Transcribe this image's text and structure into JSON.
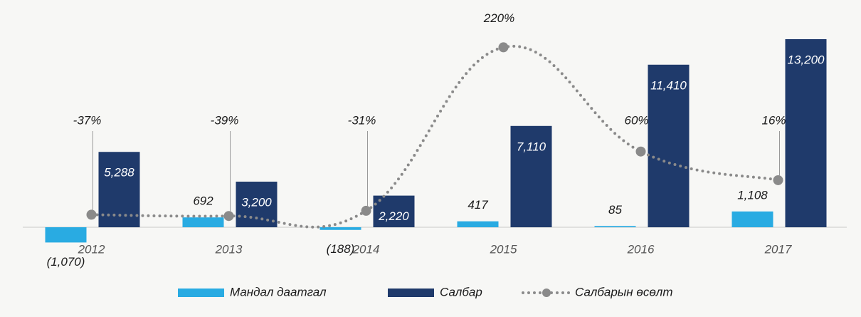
{
  "chart_data": {
    "type": "bar",
    "categories": [
      "2012",
      "2013",
      "2014",
      "2015",
      "2016",
      "2017"
    ],
    "ylim": [
      -2000,
      14000
    ],
    "y2lim": [
      -100,
      250
    ],
    "series": [
      {
        "name": "Мандал даатгал",
        "color": "#29abe2",
        "values": [
          -1070,
          692,
          -188,
          417,
          85,
          1108
        ],
        "value_labels": [
          "(1,070)",
          "692",
          "(188)",
          "417",
          "85",
          "1,108"
        ]
      },
      {
        "name": "Салбар",
        "color": "#1f3a6b",
        "values": [
          5288,
          3200,
          2220,
          7110,
          11410,
          13200
        ],
        "value_labels": [
          "5,288",
          "3,200",
          "2,220",
          "7,110",
          "11,410",
          "13,200"
        ]
      },
      {
        "name": "Салбарын өсөлт",
        "color": "#8a8a8a",
        "type": "line",
        "axis": "y2",
        "values": [
          -37,
          -39,
          -31,
          220,
          60,
          16
        ],
        "value_labels": [
          "-37%",
          "-39%",
          "-31%",
          "220%",
          "60%",
          "16%"
        ]
      }
    ]
  }
}
